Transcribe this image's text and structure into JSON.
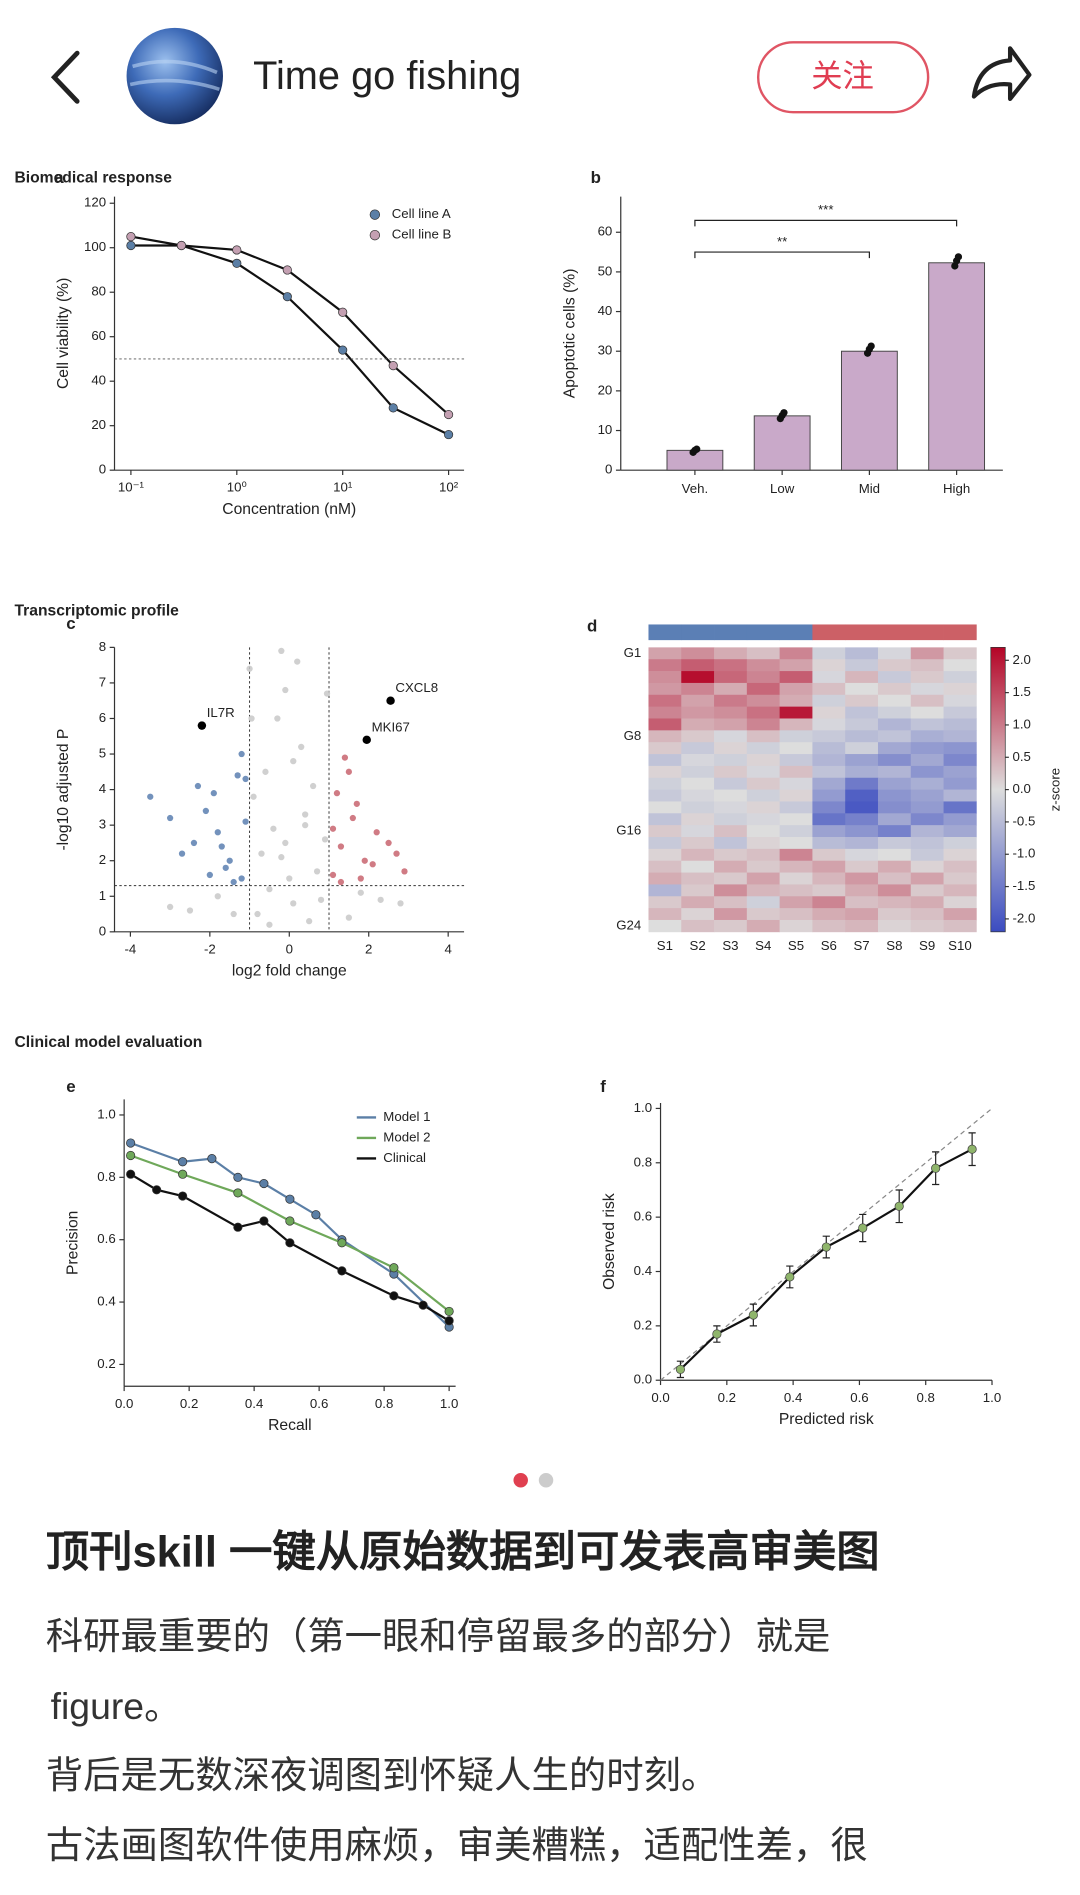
{
  "header": {
    "name": "Time go fishing",
    "follow": "关注"
  },
  "figure_sections": [
    "Biomedical response",
    "Transcriptomic profile",
    "Clinical model evaluation"
  ],
  "chart_data": [
    {
      "type": "line",
      "label": "a",
      "xlabel": "Concentration (nM)",
      "ylabel": "Cell viability (%)",
      "xlog": true,
      "xlim": [
        0.07,
        140
      ],
      "xticks": [
        {
          "value": 0.1,
          "label": "10⁻¹"
        },
        {
          "value": 1,
          "label": "10⁰"
        },
        {
          "value": 10,
          "label": "10¹"
        },
        {
          "value": 100,
          "label": "10²"
        }
      ],
      "ylim": [
        0,
        123
      ],
      "yticks": [
        0,
        20,
        40,
        60,
        80,
        100,
        120
      ],
      "hline": 50,
      "legend": "upper right",
      "markers": true,
      "series": [
        {
          "name": "Cell line A",
          "color": "#5b7fa6",
          "line_color": "#111111",
          "x": [
            0.1,
            0.3,
            1,
            3,
            10,
            30,
            100
          ],
          "values": [
            101,
            101,
            93,
            78,
            54,
            28,
            16
          ]
        },
        {
          "name": "Cell line B",
          "color": "#c4a0b2",
          "line_color": "#111111",
          "x": [
            0.1,
            0.3,
            1,
            3,
            10,
            30,
            100
          ],
          "values": [
            105,
            101,
            99,
            90,
            71,
            47,
            25
          ]
        }
      ]
    },
    {
      "type": "bar",
      "label": "b",
      "ylabel": "Apoptotic cells (%)",
      "color": "#c9a9c9",
      "categories": [
        "Veh.",
        "Low",
        "Mid",
        "High"
      ],
      "values": [
        5,
        13.7,
        30,
        52.3
      ],
      "points": [
        [
          4.5,
          5,
          5.3
        ],
        [
          13,
          13.8,
          14.5
        ],
        [
          29.5,
          30.5,
          31.3
        ],
        [
          51.5,
          52.8,
          53.8
        ]
      ],
      "ylim": [
        0,
        69
      ],
      "yticks": [
        0,
        10,
        20,
        30,
        40,
        50,
        60
      ],
      "brackets": [
        {
          "from": 0,
          "to": 2,
          "value": 55,
          "label": "**"
        },
        {
          "from": 0,
          "to": 3,
          "value": 63,
          "label": "***"
        }
      ]
    },
    {
      "type": "scatter",
      "label": "c",
      "xlabel": "log2 fold change",
      "ylabel": "-log10 adjusted P",
      "xlim": [
        -4.4,
        4.4
      ],
      "xticks": [
        -4,
        -2,
        0,
        2,
        4
      ],
      "ylim": [
        0,
        8
      ],
      "yticks": [
        0,
        1,
        2,
        3,
        4,
        5,
        6,
        7,
        8
      ],
      "thresholds": {
        "x": [
          -1,
          1
        ],
        "y": 1.3
      },
      "series": [
        {
          "color": "#c8c8c8",
          "x": [
            -0.8,
            -0.5,
            -0.2,
            0.1,
            0.4,
            0.7,
            -0.6,
            0.3,
            0.9,
            -0.3,
            0.5,
            -0.9,
            0.0,
            0.6,
            -0.4,
            0.2,
            -0.1,
            0.8,
            -1.0,
            -0.7,
            -2.5,
            -1.8,
            1.5,
            2.3,
            -3.0,
            2.8,
            1.8,
            -1.4,
            -0.2,
            0.4,
            -0.95,
            0.95,
            -0.1,
            0.1,
            -0.5
          ],
          "values": [
            0.5,
            1.2,
            2.1,
            0.8,
            3.3,
            1.7,
            4.5,
            5.2,
            2.6,
            6.0,
            0.3,
            3.8,
            1.5,
            4.1,
            2.9,
            7.6,
            6.8,
            0.9,
            7.4,
            2.2,
            0.6,
            1.0,
            0.4,
            0.9,
            0.7,
            0.8,
            1.1,
            0.5,
            7.9,
            3.0,
            6.0,
            6.7,
            2.5,
            4.8,
            0.2
          ]
        },
        {
          "color": "#5a7fb0",
          "x": [
            -1.2,
            -1.5,
            -1.8,
            -2.1,
            -1.3,
            -1.6,
            -2.4,
            -1.1,
            -1.9,
            -2.7,
            -3.5,
            -1.4,
            -1.2,
            -2.0,
            -1.7,
            -3.0,
            -1.1,
            -2.3
          ],
          "values": [
            1.5,
            2.0,
            2.8,
            3.4,
            4.4,
            1.8,
            2.5,
            3.1,
            3.9,
            2.2,
            3.8,
            1.4,
            5.0,
            1.6,
            2.4,
            3.2,
            4.3,
            4.1
          ]
        },
        {
          "color": "#c8646e",
          "x": [
            1.1,
            1.3,
            1.6,
            1.9,
            2.2,
            1.2,
            1.5,
            2.5,
            1.8,
            1.4,
            2.9,
            1.1,
            1.7,
            2.1,
            1.3,
            2.7
          ],
          "values": [
            1.6,
            2.4,
            3.2,
            2.0,
            2.8,
            3.9,
            4.5,
            2.5,
            1.5,
            4.9,
            1.7,
            2.9,
            3.6,
            1.9,
            1.4,
            2.2
          ]
        }
      ],
      "highlights": [
        {
          "label": "IL7R",
          "x": -2.2,
          "value": 5.8
        },
        {
          "label": "CXCL8",
          "x": 2.55,
          "value": 6.5
        },
        {
          "label": "MKI67",
          "x": 1.95,
          "value": 5.4
        }
      ]
    },
    {
      "type": "heatmap",
      "label": "d",
      "colorbar_label": "z-score",
      "vlim": [
        -2.2,
        2.2
      ],
      "cticks": [
        {
          "value": 2,
          "label": "2.0"
        },
        1.5,
        {
          "value": 1,
          "label": "1.0"
        },
        0.5,
        {
          "value": 0,
          "label": "0.0"
        },
        -0.5,
        {
          "value": -1,
          "label": "-1.0"
        },
        -1.5,
        {
          "value": -2,
          "label": "-2.0"
        }
      ],
      "categories": [
        "S1",
        "S2",
        "S3",
        "S4",
        "S5",
        "S6",
        "S7",
        "S8",
        "S9",
        "S10"
      ],
      "column_colors": [
        "#5b7fb5",
        "#5b7fb5",
        "#5b7fb5",
        "#5b7fb5",
        "#5b7fb5",
        "#cc6066",
        "#cc6066",
        "#cc6066",
        "#cc6066",
        "#cc6066"
      ],
      "row_labels": [
        "G1",
        null,
        null,
        null,
        null,
        null,
        null,
        "G8",
        null,
        null,
        null,
        null,
        null,
        null,
        null,
        "G16",
        null,
        null,
        null,
        null,
        null,
        null,
        null,
        "G24"
      ],
      "values": [
        [
          0.6,
          0.8,
          0.5,
          0.3,
          0.9,
          -0.2,
          -0.5,
          -0.1,
          0.7,
          0.2
        ],
        [
          1.0,
          1.3,
          1.1,
          0.8,
          0.6,
          0.1,
          -0.3,
          0.2,
          0.3,
          0.0
        ],
        [
          0.8,
          2.1,
          1.2,
          0.9,
          1.3,
          -0.1,
          0.4,
          -0.3,
          0.2,
          -0.2
        ],
        [
          0.7,
          0.9,
          0.5,
          1.2,
          0.6,
          0.3,
          0.0,
          0.2,
          -0.1,
          0.1
        ],
        [
          1.1,
          0.6,
          1.0,
          0.8,
          0.5,
          -0.2,
          0.2,
          0.0,
          0.3,
          -0.1
        ],
        [
          0.9,
          0.7,
          0.8,
          1.1,
          2.0,
          0.1,
          -0.4,
          -0.2,
          0.0,
          -0.3
        ],
        [
          1.3,
          0.5,
          0.6,
          0.9,
          0.4,
          -0.1,
          -0.3,
          -0.6,
          -0.4,
          -0.5
        ],
        [
          0.4,
          0.2,
          -0.1,
          0.3,
          -0.2,
          -0.3,
          -0.5,
          -0.4,
          -0.7,
          -0.6
        ],
        [
          0.2,
          -0.3,
          0.1,
          -0.2,
          0.0,
          -0.5,
          -0.2,
          -0.8,
          -1.0,
          -1.1
        ],
        [
          -0.4,
          -0.1,
          -0.2,
          0.1,
          -0.3,
          -0.6,
          -0.9,
          -1.2,
          -0.8,
          -1.3
        ],
        [
          0.1,
          -0.2,
          0.2,
          -0.1,
          0.3,
          -0.4,
          -0.7,
          -0.6,
          -1.1,
          -0.9
        ],
        [
          -0.2,
          0.0,
          -0.3,
          0.2,
          -0.1,
          -0.8,
          -1.5,
          -0.9,
          -0.7,
          -1.0
        ],
        [
          -0.3,
          -0.1,
          0.0,
          -0.2,
          0.1,
          -1.0,
          -1.9,
          -1.1,
          -0.9,
          -0.6
        ],
        [
          0.0,
          -0.2,
          -0.1,
          0.1,
          -0.3,
          -1.3,
          -2.0,
          -1.2,
          -1.0,
          -1.6
        ],
        [
          -0.4,
          0.1,
          -0.2,
          -0.1,
          0.0,
          -1.6,
          -1.4,
          -0.8,
          -1.3,
          -1.0
        ],
        [
          0.2,
          -0.1,
          0.3,
          0.0,
          -0.2,
          -0.9,
          -1.1,
          -1.4,
          -0.6,
          -0.8
        ],
        [
          -0.3,
          0.2,
          -0.4,
          0.1,
          0.0,
          -0.5,
          -0.6,
          -0.3,
          -0.4,
          -0.2
        ],
        [
          0.1,
          0.4,
          0.2,
          0.3,
          0.9,
          0.2,
          -0.1,
          0.0,
          -0.3,
          0.1
        ],
        [
          0.3,
          0.0,
          0.5,
          0.2,
          0.4,
          0.6,
          0.2,
          0.5,
          0.1,
          0.3
        ],
        [
          0.5,
          0.3,
          0.2,
          0.6,
          0.1,
          0.4,
          0.7,
          0.3,
          0.6,
          0.2
        ],
        [
          -0.6,
          0.2,
          0.8,
          0.4,
          0.3,
          0.2,
          0.5,
          0.8,
          0.2,
          0.4
        ],
        [
          0.2,
          0.5,
          0.3,
          -0.2,
          0.6,
          0.9,
          0.3,
          0.4,
          0.5,
          0.1
        ],
        [
          0.4,
          0.1,
          0.7,
          0.2,
          0.3,
          0.5,
          0.6,
          0.2,
          0.3,
          0.6
        ],
        [
          0.0,
          0.3,
          0.2,
          0.5,
          0.1,
          0.3,
          0.4,
          0.1,
          0.2,
          0.3
        ]
      ]
    },
    {
      "type": "line",
      "label": "e",
      "xlabel": "Recall",
      "ylabel": "Precision",
      "xlim": [
        0,
        1.02
      ],
      "xticks": [
        {
          "value": 0,
          "label": "0.0"
        },
        0.2,
        0.4,
        0.6,
        0.8,
        {
          "value": 1,
          "label": "1.0"
        }
      ],
      "ylim": [
        0.13,
        1.05
      ],
      "yticks": [
        0.2,
        0.4,
        0.6,
        0.8,
        {
          "value": 1,
          "label": "1.0"
        }
      ],
      "legend": "upper right",
      "markers": true,
      "series": [
        {
          "name": "Model 1",
          "color": "#5b7fa6",
          "x": [
            0.02,
            0.18,
            0.27,
            0.35,
            0.43,
            0.51,
            0.59,
            0.67,
            0.83,
            1.0
          ],
          "values": [
            0.91,
            0.85,
            0.86,
            0.8,
            0.78,
            0.73,
            0.68,
            0.6,
            0.49,
            0.32
          ]
        },
        {
          "name": "Model 2",
          "color": "#6fa85a",
          "x": [
            0.02,
            0.18,
            0.35,
            0.51,
            0.67,
            0.83,
            1.0
          ],
          "values": [
            0.87,
            0.81,
            0.75,
            0.66,
            0.59,
            0.51,
            0.37
          ]
        },
        {
          "name": "Clinical",
          "color": "#111111",
          "x": [
            0.02,
            0.1,
            0.18,
            0.35,
            0.43,
            0.51,
            0.67,
            0.83,
            0.92,
            1.0
          ],
          "values": [
            0.81,
            0.76,
            0.74,
            0.64,
            0.66,
            0.59,
            0.5,
            0.42,
            0.39,
            0.34
          ]
        }
      ]
    },
    {
      "type": "errorbar",
      "label": "f",
      "xlabel": "Predicted risk",
      "ylabel": "Observed risk",
      "reference": "diagonal",
      "xlim": [
        0,
        1
      ],
      "xticks": [
        {
          "value": 0,
          "label": "0.0"
        },
        0.2,
        0.4,
        0.6,
        0.8,
        {
          "value": 1,
          "label": "1.0"
        }
      ],
      "ylim": [
        0,
        1.02
      ],
      "yticks": [
        {
          "value": 0,
          "label": "0.0"
        },
        0.2,
        0.4,
        0.6,
        0.8,
        {
          "value": 1,
          "label": "1.0"
        }
      ],
      "color": "#8fb56b",
      "x": [
        0.06,
        0.17,
        0.28,
        0.39,
        0.5,
        0.61,
        0.72,
        0.83,
        0.94
      ],
      "values": [
        0.04,
        0.17,
        0.24,
        0.38,
        0.49,
        0.56,
        0.64,
        0.78,
        0.85
      ],
      "errors": [
        0.03,
        0.03,
        0.04,
        0.04,
        0.04,
        0.05,
        0.06,
        0.06,
        0.06
      ]
    }
  ],
  "post": {
    "title": "顶刊skill 一键从原始数据到可发表高审美图",
    "lines": [
      "科研最重要的（第一眼和停留最多的部分）就是",
      "figure。",
      "背后是无数深夜调图到怀疑人生的时刻。",
      "古法画图软件使用麻烦，审美糟糕，适配性差，很"
    ]
  }
}
